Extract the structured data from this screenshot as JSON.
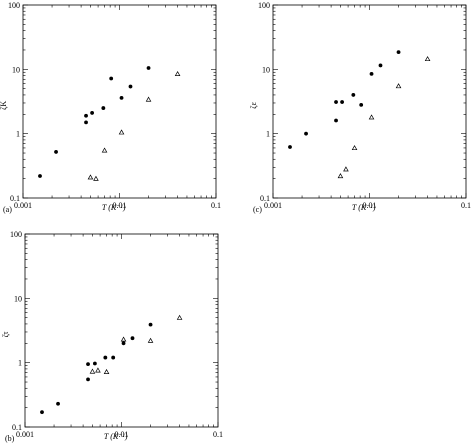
{
  "chart_data": [
    {
      "panel": "(a)",
      "type": "scatter",
      "xlabel": "T (K⁻¹)",
      "ylabel": "ζK",
      "x_scale": "log",
      "y_scale": "log",
      "xlim": [
        0.001,
        0.1
      ],
      "ylim": [
        0.1,
        100
      ],
      "x_tick_labels": [
        "0.001",
        "0.01",
        "0.1"
      ],
      "y_tick_labels": [
        "0.1",
        "1",
        "10",
        "100"
      ],
      "grid": false,
      "legend": "none",
      "series": [
        {
          "marker": "circle",
          "points": [
            [
              0.0015,
              0.22
            ],
            [
              0.0022,
              0.52
            ],
            [
              0.0045,
              1.5
            ],
            [
              0.0045,
              1.9
            ],
            [
              0.0052,
              2.1
            ],
            [
              0.0068,
              2.5
            ],
            [
              0.0082,
              7.2
            ],
            [
              0.0105,
              3.6
            ],
            [
              0.013,
              5.4
            ],
            [
              0.02,
              10.5
            ]
          ]
        },
        {
          "marker": "triangle",
          "points": [
            [
              0.005,
              0.21
            ],
            [
              0.0057,
              0.2
            ],
            [
              0.007,
              0.55
            ],
            [
              0.0105,
              1.05
            ],
            [
              0.02,
              3.4
            ],
            [
              0.04,
              8.5
            ]
          ]
        }
      ]
    },
    {
      "panel": "(b)",
      "type": "scatter",
      "xlabel": "T (K⁻¹)",
      "ylabel": "ζτ",
      "x_scale": "log",
      "y_scale": "log",
      "xlim": [
        0.001,
        0.1
      ],
      "ylim": [
        0.1,
        100
      ],
      "x_tick_labels": [
        "0.001",
        "0.01",
        "0.1"
      ],
      "y_tick_labels": [
        "0.1",
        "1",
        "10",
        "100"
      ],
      "grid": false,
      "legend": "none",
      "series": [
        {
          "marker": "circle",
          "points": [
            [
              0.0015,
              0.17
            ],
            [
              0.0022,
              0.23
            ],
            [
              0.0045,
              0.55
            ],
            [
              0.0045,
              0.95
            ],
            [
              0.0053,
              0.97
            ],
            [
              0.0068,
              1.2
            ],
            [
              0.0082,
              1.2
            ],
            [
              0.0105,
              2.0
            ],
            [
              0.013,
              2.4
            ],
            [
              0.02,
              3.9
            ]
          ]
        },
        {
          "marker": "triangle",
          "points": [
            [
              0.005,
              0.73
            ],
            [
              0.0057,
              0.76
            ],
            [
              0.007,
              0.72
            ],
            [
              0.0105,
              2.3
            ],
            [
              0.02,
              2.2
            ],
            [
              0.04,
              5.0
            ]
          ]
        }
      ]
    },
    {
      "panel": "(c)",
      "type": "scatter",
      "xlabel": "T (K⁻¹)",
      "ylabel": "ζε",
      "x_scale": "log",
      "y_scale": "log",
      "xlim": [
        0.001,
        0.1
      ],
      "ylim": [
        0.1,
        100
      ],
      "x_tick_labels": [
        "0.001",
        "0.01",
        "0.1"
      ],
      "y_tick_labels": [
        "0.1",
        "1",
        "10",
        "100"
      ],
      "grid": false,
      "legend": "none",
      "series": [
        {
          "marker": "circle",
          "points": [
            [
              0.0015,
              0.62
            ],
            [
              0.0022,
              1.0
            ],
            [
              0.0045,
              1.6
            ],
            [
              0.0045,
              3.1
            ],
            [
              0.0052,
              3.1
            ],
            [
              0.0068,
              4.0
            ],
            [
              0.0082,
              2.8
            ],
            [
              0.0105,
              8.5
            ],
            [
              0.013,
              11.5
            ],
            [
              0.02,
              18.5
            ]
          ]
        },
        {
          "marker": "triangle",
          "points": [
            [
              0.005,
              0.22
            ],
            [
              0.0057,
              0.28
            ],
            [
              0.007,
              0.6
            ],
            [
              0.0105,
              1.8
            ],
            [
              0.02,
              5.5
            ],
            [
              0.04,
              14.5
            ]
          ]
        }
      ]
    }
  ]
}
